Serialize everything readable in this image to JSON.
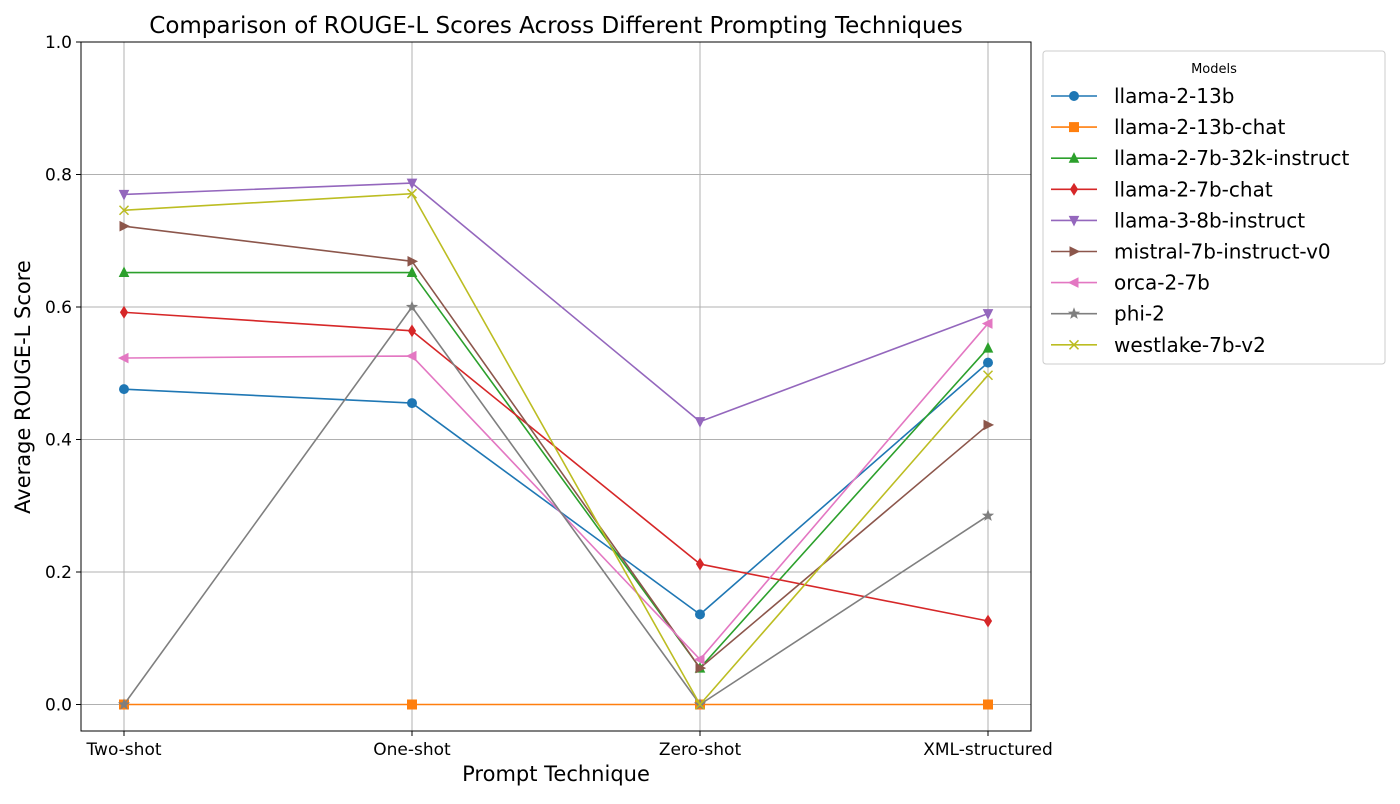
{
  "chart_data": {
    "type": "line",
    "title": "Comparison of ROUGE-L Scores Across Different Prompting Techniques",
    "xlabel": "Prompt Technique",
    "ylabel": "Average ROUGE-L Score",
    "categories": [
      "Two-shot",
      "One-shot",
      "Zero-shot",
      "XML-structured"
    ],
    "ylim": [
      -0.04,
      1.0
    ],
    "yticks": [
      0.0,
      0.2,
      0.4,
      0.6,
      0.8,
      1.0
    ],
    "ytick_labels": [
      "0.0",
      "0.2",
      "0.4",
      "0.6",
      "0.8",
      "1.0"
    ],
    "grid": true,
    "legend": {
      "title": "Models",
      "placement": "outside-right-top"
    },
    "series": [
      {
        "name": "llama-2-13b",
        "color": "#1f77b4",
        "marker": "circle",
        "values": [
          0.476,
          0.455,
          0.136,
          0.516
        ]
      },
      {
        "name": "llama-2-13b-chat",
        "color": "#ff7f0e",
        "marker": "square",
        "values": [
          0.0,
          0.0,
          0.0,
          0.0
        ]
      },
      {
        "name": "llama-2-7b-32k-instruct",
        "color": "#2ca02c",
        "marker": "triangle-up",
        "values": [
          0.652,
          0.652,
          0.055,
          0.538
        ]
      },
      {
        "name": "llama-2-7b-chat",
        "color": "#d62728",
        "marker": "diamond",
        "values": [
          0.592,
          0.564,
          0.212,
          0.126
        ]
      },
      {
        "name": "llama-3-8b-instruct",
        "color": "#9467bd",
        "marker": "triangle-down",
        "values": [
          0.77,
          0.787,
          0.427,
          0.59
        ]
      },
      {
        "name": "mistral-7b-instruct-v0",
        "color": "#8c564b",
        "marker": "triangle-right",
        "values": [
          0.722,
          0.669,
          0.055,
          0.422
        ]
      },
      {
        "name": "orca-2-7b",
        "color": "#e377c2",
        "marker": "triangle-left",
        "values": [
          0.523,
          0.526,
          0.068,
          0.575
        ]
      },
      {
        "name": "phi-2",
        "color": "#7f7f7f",
        "marker": "star",
        "values": [
          0.0,
          0.6,
          0.0,
          0.285
        ]
      },
      {
        "name": "westlake-7b-v2",
        "color": "#bcbd22",
        "marker": "x",
        "values": [
          0.746,
          0.771,
          0.0,
          0.497
        ]
      }
    ]
  }
}
